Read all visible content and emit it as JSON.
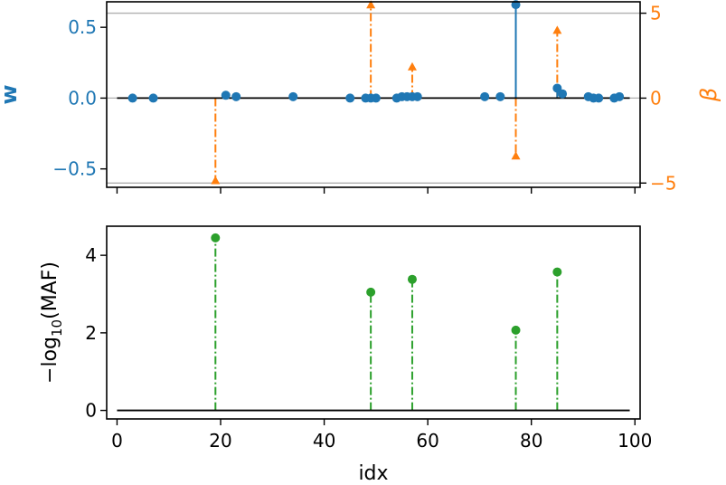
{
  "chart_data": [
    {
      "type": "stem",
      "xlim": [
        -2,
        101
      ],
      "ylabel": "w",
      "ylim": [
        -0.63,
        0.68
      ],
      "yticks": [
        -0.5,
        0.0,
        0.5
      ],
      "ytick_labels": [
        "−0.5",
        "0.0",
        "0.5"
      ],
      "secondary_ylabel": "β",
      "secondary_ylim": [
        -5.25,
        5.67
      ],
      "secondary_yticks": [
        -5,
        0,
        5
      ],
      "secondary_ytick_labels": [
        "−5",
        "0",
        "5"
      ],
      "reference_lines_beta": [
        -5.0,
        5.0
      ],
      "grid": false,
      "baseline": {
        "x_start": 0,
        "x_end": 99,
        "y": 0
      },
      "series": [
        {
          "color": "#1f77b4",
          "marker": "circle",
          "line": "solid",
          "x": [
            3,
            7,
            21,
            23,
            34,
            45,
            48,
            49,
            50,
            54,
            55,
            56,
            57,
            58,
            71,
            74,
            77,
            85,
            86,
            91,
            92,
            93,
            96,
            97
          ],
          "y": [
            0.0,
            0.0,
            0.02,
            0.01,
            0.01,
            0.0,
            0.0,
            0.0,
            0.0,
            0.0,
            0.01,
            0.01,
            0.01,
            0.01,
            0.01,
            0.01,
            0.66,
            0.07,
            0.03,
            0.01,
            0.0,
            0.0,
            0.0,
            0.01
          ]
        },
        {
          "color": "#ff7f0e",
          "marker": "triangle",
          "line": "dash-dot",
          "axis": "secondary",
          "x": [
            19,
            49,
            57,
            77,
            85
          ],
          "y": [
            -4.85,
            5.5,
            1.85,
            -3.4,
            4.0
          ]
        }
      ]
    },
    {
      "type": "stem",
      "xlabel": "idx",
      "xlim": [
        -2,
        101
      ],
      "xticks": [
        0,
        20,
        40,
        60,
        80,
        100
      ],
      "xtick_labels": [
        "0",
        "20",
        "40",
        "60",
        "80",
        "100"
      ],
      "ylabel": "−log10(MAF)",
      "ylim": [
        -0.22,
        4.75
      ],
      "yticks": [
        0,
        2,
        4
      ],
      "ytick_labels": [
        "0",
        "2",
        "4"
      ],
      "grid": false,
      "baseline": {
        "x_start": 0,
        "x_end": 99,
        "y": 0
      },
      "series": [
        {
          "color": "#2ca02c",
          "marker": "circle",
          "line": "dash-dot",
          "x": [
            19,
            49,
            57,
            77,
            85
          ],
          "y": [
            4.45,
            3.05,
            3.38,
            2.07,
            3.57
          ]
        }
      ]
    }
  ],
  "colors": {
    "w_axis": "#1f77b4",
    "beta_axis": "#ff7f0e",
    "maf": "#2ca02c",
    "reference_line": "#b0b0b0"
  }
}
